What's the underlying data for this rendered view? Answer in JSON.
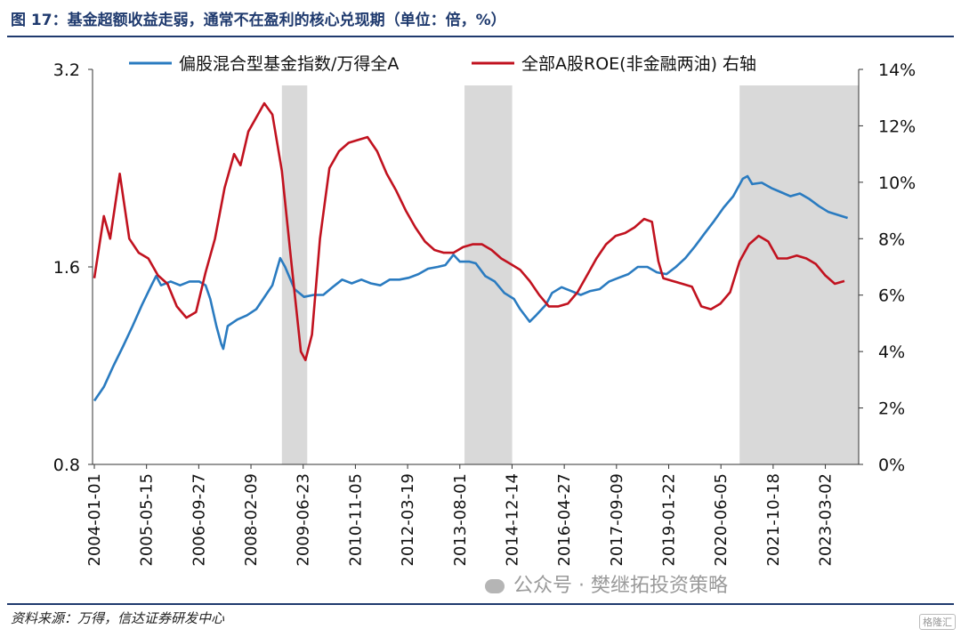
{
  "title": "图 17：基金超额收益走弱，通常不在盈利的核心兑现期（单位：倍，%）",
  "source": "资料来源：万得，信达证券研发中心",
  "watermark": "公众号 · 樊继拓投资策略",
  "corner_mark": "格隆汇",
  "colors": {
    "blue": "#2a7bc0",
    "red": "#c1121f",
    "shade": "#d9d9d9",
    "title": "#1f3a6e"
  },
  "chart_data": {
    "type": "line",
    "legend_placement": "top",
    "series": [
      {
        "name": "偏股混合型基金指数/万得全A",
        "axis": "left",
        "color": "#2a7bc0",
        "points": [
          [
            "2004-01-01",
            1.0
          ],
          [
            "2004-04-01",
            1.05
          ],
          [
            "2004-07-01",
            1.13
          ],
          [
            "2004-10-01",
            1.21
          ],
          [
            "2005-01-01",
            1.3
          ],
          [
            "2005-04-01",
            1.4
          ],
          [
            "2005-07-01",
            1.5
          ],
          [
            "2005-08-15",
            1.55
          ],
          [
            "2005-10-01",
            1.5
          ],
          [
            "2006-01-01",
            1.52
          ],
          [
            "2006-04-01",
            1.5
          ],
          [
            "2006-07-01",
            1.52
          ],
          [
            "2006-10-01",
            1.52
          ],
          [
            "2006-12-01",
            1.5
          ],
          [
            "2007-01-15",
            1.43
          ],
          [
            "2007-03-15",
            1.3
          ],
          [
            "2007-05-01",
            1.22
          ],
          [
            "2007-05-20",
            1.2
          ],
          [
            "2007-07-01",
            1.3
          ],
          [
            "2007-10-01",
            1.33
          ],
          [
            "2008-01-01",
            1.35
          ],
          [
            "2008-04-01",
            1.38
          ],
          [
            "2008-07-01",
            1.45
          ],
          [
            "2008-09-01",
            1.5
          ],
          [
            "2008-11-15",
            1.65
          ],
          [
            "2009-01-01",
            1.6
          ],
          [
            "2009-04-01",
            1.48
          ],
          [
            "2009-07-01",
            1.44
          ],
          [
            "2009-10-01",
            1.45
          ],
          [
            "2010-01-01",
            1.45
          ],
          [
            "2010-04-01",
            1.49
          ],
          [
            "2010-07-01",
            1.53
          ],
          [
            "2010-10-01",
            1.51
          ],
          [
            "2011-01-01",
            1.53
          ],
          [
            "2011-04-01",
            1.51
          ],
          [
            "2011-07-01",
            1.5
          ],
          [
            "2011-10-01",
            1.53
          ],
          [
            "2012-01-01",
            1.53
          ],
          [
            "2012-04-01",
            1.54
          ],
          [
            "2012-07-01",
            1.56
          ],
          [
            "2012-10-01",
            1.59
          ],
          [
            "2013-01-01",
            1.6
          ],
          [
            "2013-03-15",
            1.61
          ],
          [
            "2013-06-01",
            1.67
          ],
          [
            "2013-08-01",
            1.63
          ],
          [
            "2013-11-01",
            1.63
          ],
          [
            "2014-01-01",
            1.62
          ],
          [
            "2014-04-01",
            1.55
          ],
          [
            "2014-07-01",
            1.52
          ],
          [
            "2014-10-01",
            1.46
          ],
          [
            "2015-01-01",
            1.43
          ],
          [
            "2015-03-01",
            1.38
          ],
          [
            "2015-06-01",
            1.32
          ],
          [
            "2015-08-01",
            1.35
          ],
          [
            "2015-11-01",
            1.4
          ],
          [
            "2016-01-01",
            1.46
          ],
          [
            "2016-04-01",
            1.49
          ],
          [
            "2016-07-01",
            1.47
          ],
          [
            "2016-10-01",
            1.45
          ],
          [
            "2017-01-01",
            1.47
          ],
          [
            "2017-04-01",
            1.48
          ],
          [
            "2017-07-01",
            1.52
          ],
          [
            "2017-10-01",
            1.54
          ],
          [
            "2018-01-01",
            1.56
          ],
          [
            "2018-04-01",
            1.6
          ],
          [
            "2018-07-01",
            1.6
          ],
          [
            "2018-10-01",
            1.57
          ],
          [
            "2019-01-01",
            1.56
          ],
          [
            "2019-04-01",
            1.6
          ],
          [
            "2019-07-01",
            1.65
          ],
          [
            "2019-10-01",
            1.72
          ],
          [
            "2020-01-01",
            1.8
          ],
          [
            "2020-04-01",
            1.88
          ],
          [
            "2020-07-01",
            1.97
          ],
          [
            "2020-10-01",
            2.05
          ],
          [
            "2021-01-01",
            2.18
          ],
          [
            "2021-02-15",
            2.2
          ],
          [
            "2021-04-01",
            2.14
          ],
          [
            "2021-07-01",
            2.15
          ],
          [
            "2021-10-01",
            2.11
          ],
          [
            "2022-01-01",
            2.08
          ],
          [
            "2022-04-01",
            2.05
          ],
          [
            "2022-07-01",
            2.07
          ],
          [
            "2022-10-01",
            2.03
          ],
          [
            "2023-01-01",
            1.98
          ],
          [
            "2023-04-01",
            1.94
          ],
          [
            "2023-07-01",
            1.92
          ],
          [
            "2023-10-01",
            1.9
          ]
        ]
      },
      {
        "name": "全部A股ROE(非金融两油) 右轴",
        "axis": "right",
        "color": "#c1121f",
        "points": [
          [
            "2004-01-01",
            6.6
          ],
          [
            "2004-04-01",
            8.8
          ],
          [
            "2004-06-01",
            8.0
          ],
          [
            "2004-09-01",
            10.3
          ],
          [
            "2004-12-01",
            8.0
          ],
          [
            "2005-03-01",
            7.5
          ],
          [
            "2005-06-01",
            7.3
          ],
          [
            "2005-09-01",
            6.7
          ],
          [
            "2005-12-01",
            6.4
          ],
          [
            "2006-03-01",
            5.6
          ],
          [
            "2006-06-01",
            5.2
          ],
          [
            "2006-09-01",
            5.4
          ],
          [
            "2006-12-01",
            6.8
          ],
          [
            "2007-03-01",
            8.0
          ],
          [
            "2007-06-01",
            9.8
          ],
          [
            "2007-09-01",
            11.0
          ],
          [
            "2007-11-01",
            10.6
          ],
          [
            "2008-01-15",
            11.8
          ],
          [
            "2008-04-01",
            12.3
          ],
          [
            "2008-06-15",
            12.8
          ],
          [
            "2008-09-01",
            12.4
          ],
          [
            "2008-12-01",
            10.4
          ],
          [
            "2009-03-01",
            7.2
          ],
          [
            "2009-06-01",
            4.0
          ],
          [
            "2009-07-15",
            3.7
          ],
          [
            "2009-09-15",
            4.6
          ],
          [
            "2009-12-01",
            8.0
          ],
          [
            "2010-03-01",
            10.5
          ],
          [
            "2010-06-01",
            11.1
          ],
          [
            "2010-09-01",
            11.4
          ],
          [
            "2010-12-01",
            11.5
          ],
          [
            "2011-03-01",
            11.6
          ],
          [
            "2011-06-01",
            11.1
          ],
          [
            "2011-09-01",
            10.3
          ],
          [
            "2011-12-01",
            9.7
          ],
          [
            "2012-03-01",
            9.0
          ],
          [
            "2012-06-01",
            8.4
          ],
          [
            "2012-09-01",
            7.9
          ],
          [
            "2012-12-01",
            7.6
          ],
          [
            "2013-03-01",
            7.5
          ],
          [
            "2013-06-01",
            7.5
          ],
          [
            "2013-09-01",
            7.7
          ],
          [
            "2013-12-01",
            7.8
          ],
          [
            "2014-03-01",
            7.8
          ],
          [
            "2014-06-01",
            7.6
          ],
          [
            "2014-09-01",
            7.3
          ],
          [
            "2014-12-01",
            7.1
          ],
          [
            "2015-03-01",
            6.9
          ],
          [
            "2015-06-01",
            6.5
          ],
          [
            "2015-09-01",
            6.0
          ],
          [
            "2015-12-01",
            5.6
          ],
          [
            "2016-03-01",
            5.6
          ],
          [
            "2016-06-01",
            5.7
          ],
          [
            "2016-09-01",
            6.1
          ],
          [
            "2016-12-01",
            6.7
          ],
          [
            "2017-03-01",
            7.3
          ],
          [
            "2017-06-01",
            7.8
          ],
          [
            "2017-09-01",
            8.1
          ],
          [
            "2017-12-01",
            8.2
          ],
          [
            "2018-03-01",
            8.4
          ],
          [
            "2018-06-01",
            8.7
          ],
          [
            "2018-08-15",
            8.6
          ],
          [
            "2018-10-15",
            7.2
          ],
          [
            "2018-12-01",
            6.6
          ],
          [
            "2019-03-01",
            6.5
          ],
          [
            "2019-06-01",
            6.4
          ],
          [
            "2019-09-01",
            6.3
          ],
          [
            "2019-12-01",
            5.6
          ],
          [
            "2020-03-01",
            5.5
          ],
          [
            "2020-06-01",
            5.7
          ],
          [
            "2020-09-01",
            6.1
          ],
          [
            "2020-12-01",
            7.2
          ],
          [
            "2021-03-01",
            7.8
          ],
          [
            "2021-06-01",
            8.1
          ],
          [
            "2021-09-01",
            7.9
          ],
          [
            "2021-12-01",
            7.3
          ],
          [
            "2022-03-01",
            7.3
          ],
          [
            "2022-06-01",
            7.4
          ],
          [
            "2022-09-01",
            7.3
          ],
          [
            "2022-12-01",
            7.1
          ],
          [
            "2023-03-01",
            6.7
          ],
          [
            "2023-06-01",
            6.4
          ],
          [
            "2023-09-01",
            6.5
          ]
        ]
      }
    ],
    "shaded_periods": [
      [
        "2008-12-01",
        "2009-08-01"
      ],
      [
        "2013-09-15",
        "2014-12-15"
      ],
      [
        "2020-12-01",
        "2024-01-15"
      ]
    ],
    "x_range": [
      "2003-12-15",
      "2024-01-15"
    ],
    "x_tick_labels": [
      "2004-01-01",
      "2005-05-15",
      "2006-09-27",
      "2008-02-09",
      "2009-06-23",
      "2010-11-05",
      "2012-03-19",
      "2013-08-01",
      "2014-12-14",
      "2016-04-27",
      "2017-09-09",
      "2019-01-22",
      "2020-06-05",
      "2021-10-18",
      "2023-03-02"
    ],
    "y_left": {
      "scale": "log",
      "ylim": [
        0.8,
        3.2
      ],
      "ticks": [
        0.8,
        1.6,
        3.2
      ],
      "tick_labels": [
        "0.8",
        "1.6",
        "3.2"
      ]
    },
    "y_right": {
      "ylim": [
        0,
        14
      ],
      "ticks": [
        0,
        2,
        4,
        6,
        8,
        10,
        12,
        14
      ],
      "tick_labels": [
        "0%",
        "2%",
        "4%",
        "6%",
        "8%",
        "10%",
        "12%",
        "14%"
      ]
    }
  }
}
